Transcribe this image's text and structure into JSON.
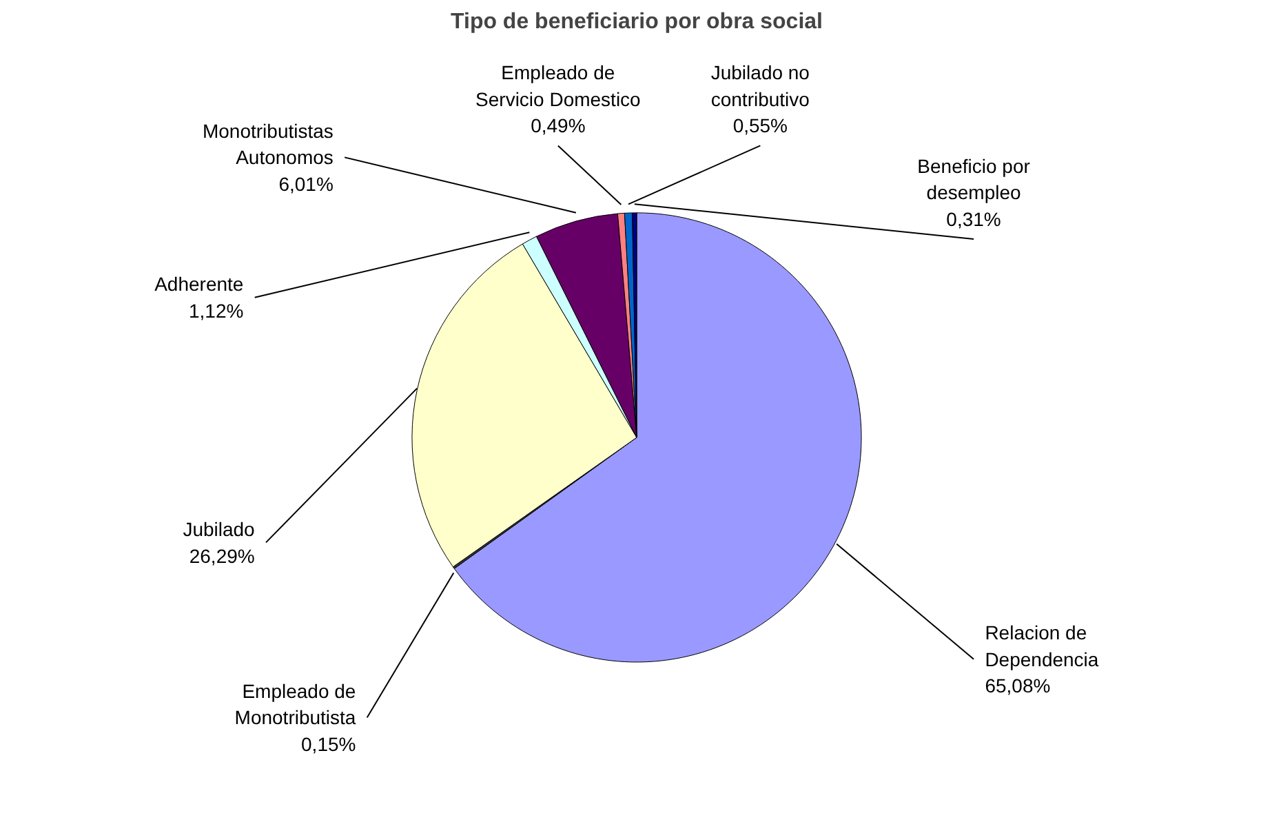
{
  "chart_data": {
    "type": "pie",
    "title": "Tipo de beneficiario por obra social",
    "categories": [
      "Relacion de Dependencia",
      "Empleado de Monotributista",
      "Jubilado",
      "Adherente",
      "Monotributistas Autonomos",
      "Empleado de Servicio Domestico",
      "Jubilado no contributivo",
      "Beneficio por desempleo"
    ],
    "values": [
      65.08,
      0.15,
      26.29,
      1.12,
      6.01,
      0.49,
      0.55,
      0.31
    ],
    "value_labels": [
      "65,08%",
      "0,15%",
      "26,29%",
      "1,12%",
      "6,01%",
      "0,49%",
      "0,55%",
      "0,31%"
    ],
    "colors": [
      "#9999ff",
      "#333333",
      "#ffffcc",
      "#ccffff",
      "#660066",
      "#ff8080",
      "#0066cc",
      "#000080"
    ]
  }
}
